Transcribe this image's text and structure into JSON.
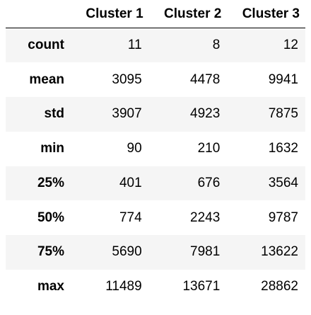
{
  "table": {
    "corner": "",
    "columns": [
      "Cluster 1",
      "Cluster 2",
      "Cluster 3"
    ],
    "rows": [
      {
        "label": "count",
        "values": [
          "11",
          "8",
          "12"
        ]
      },
      {
        "label": "mean",
        "values": [
          "3095",
          "4478",
          "9941"
        ]
      },
      {
        "label": "std",
        "values": [
          "3907",
          "4923",
          "7875"
        ]
      },
      {
        "label": "min",
        "values": [
          "90",
          "210",
          "1632"
        ]
      },
      {
        "label": "25%",
        "values": [
          "401",
          "676",
          "3564"
        ]
      },
      {
        "label": "50%",
        "values": [
          "774",
          "2243",
          "9787"
        ]
      },
      {
        "label": "75%",
        "values": [
          "5690",
          "7981",
          "13622"
        ]
      },
      {
        "label": "max",
        "values": [
          "11489",
          "13671",
          "28862"
        ]
      }
    ]
  },
  "colors": {
    "background": "#ffffff",
    "stripe": "#f5f5f5",
    "text": "#000000",
    "rule": "#000000"
  }
}
